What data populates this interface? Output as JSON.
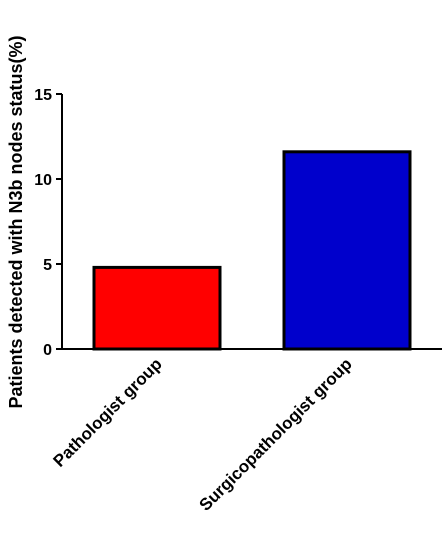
{
  "chart_data": {
    "type": "bar",
    "categories": [
      "Pathologist group",
      "Surgicopathologist group"
    ],
    "values": [
      4.8,
      11.6
    ],
    "colors": [
      "#ff0000",
      "#0000cc"
    ],
    "xlabel": "",
    "ylabel": "Patients detected with N3b nodes status(%)",
    "ylim": [
      0,
      15
    ],
    "yticks": [
      0,
      5,
      10,
      15
    ],
    "grid": false
  }
}
